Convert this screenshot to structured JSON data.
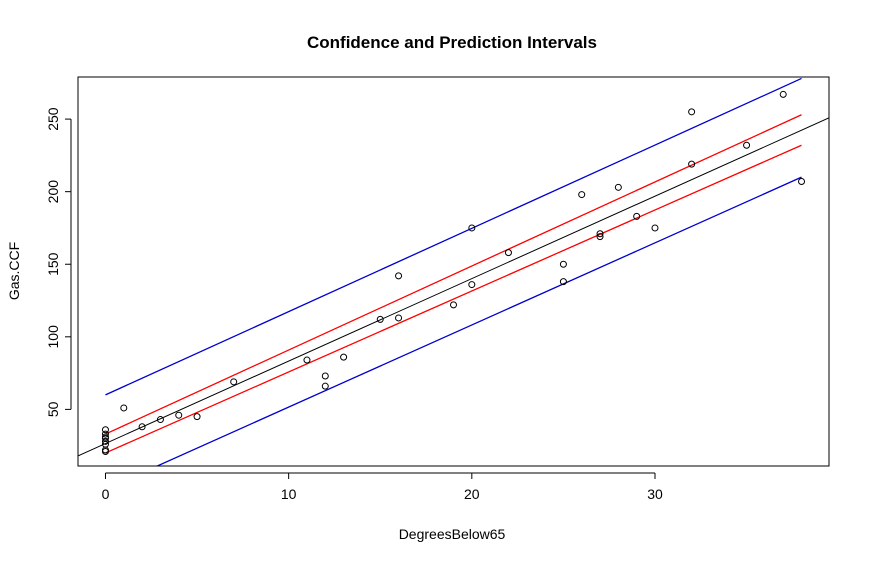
{
  "chart_data": {
    "type": "scatter",
    "title": "Confidence and Prediction Intervals",
    "xlabel": "DegreesBelow65",
    "ylabel": "Gas.CCF",
    "xlim": [
      -1.5,
      39.5
    ],
    "ylim": [
      11,
      279
    ],
    "xticks": [
      0,
      10,
      20,
      30
    ],
    "yticks": [
      50,
      100,
      150,
      200,
      250
    ],
    "grid": false,
    "points": [
      [
        0,
        36
      ],
      [
        0,
        33
      ],
      [
        0,
        31
      ],
      [
        0,
        30
      ],
      [
        0,
        28
      ],
      [
        0,
        26
      ],
      [
        0,
        22
      ],
      [
        0,
        21
      ],
      [
        1,
        51
      ],
      [
        2,
        38
      ],
      [
        3,
        43
      ],
      [
        4,
        46
      ],
      [
        5,
        45
      ],
      [
        7,
        69
      ],
      [
        11,
        84
      ],
      [
        12,
        73
      ],
      [
        12,
        66
      ],
      [
        13,
        86
      ],
      [
        15,
        112
      ],
      [
        16,
        113
      ],
      [
        16,
        142
      ],
      [
        19,
        122
      ],
      [
        20,
        175
      ],
      [
        20,
        136
      ],
      [
        22,
        158
      ],
      [
        25,
        150
      ],
      [
        25,
        138
      ],
      [
        26,
        198
      ],
      [
        27,
        171
      ],
      [
        27,
        169
      ],
      [
        28,
        203
      ],
      [
        29,
        183
      ],
      [
        30,
        175
      ],
      [
        32,
        255
      ],
      [
        32,
        219
      ],
      [
        35,
        232
      ],
      [
        37,
        267
      ],
      [
        38,
        207
      ]
    ],
    "fit": {
      "intercept": 26.5,
      "slope": 5.68,
      "color": "#000000"
    },
    "confidence_interval": {
      "color": "#ff0000",
      "upper": [
        [
          0,
          33
        ],
        [
          38,
          253
        ]
      ],
      "lower": [
        [
          0,
          20
        ],
        [
          38,
          232
        ]
      ]
    },
    "prediction_interval": {
      "color": "#0000cd",
      "upper": [
        [
          0,
          60
        ],
        [
          38,
          278
        ]
      ],
      "lower": [
        [
          0,
          -5
        ],
        [
          38,
          210
        ]
      ]
    }
  }
}
